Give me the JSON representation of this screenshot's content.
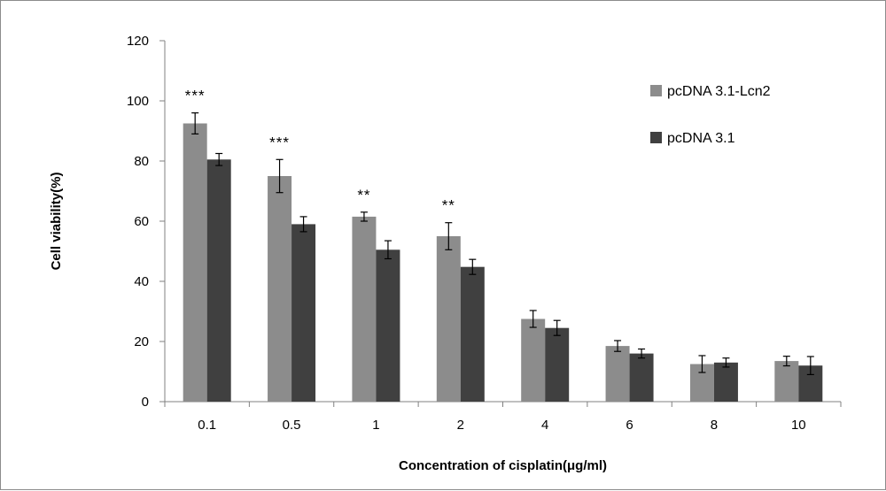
{
  "chart_data": {
    "type": "bar",
    "categories": [
      "0.1",
      "0.5",
      "1",
      "2",
      "4",
      "6",
      "8",
      "10"
    ],
    "xlabel": "Concentration of cisplatin(μg/ml)",
    "ylabel": "Cell viability(%)",
    "ylim": [
      0,
      120
    ],
    "yticks": [
      "0",
      "20",
      "40",
      "60",
      "80",
      "100",
      "120"
    ],
    "grid": false,
    "legend_position": "top-right",
    "series": [
      {
        "name": "pcDNA 3.1-Lcn2",
        "color": "#8c8c8c",
        "values": [
          92.5,
          75,
          61.5,
          55,
          27.5,
          18.5,
          12.5,
          13.5
        ],
        "errors": [
          3.5,
          5.5,
          1.5,
          4.5,
          2.8,
          1.8,
          2.8,
          1.6
        ]
      },
      {
        "name": "pcDNA 3.1",
        "color": "#404040",
        "values": [
          80.5,
          59,
          50.5,
          44.8,
          24.5,
          16,
          13,
          12
        ],
        "errors": [
          2,
          2.5,
          3,
          2.5,
          2.5,
          1.5,
          1.5,
          3
        ]
      }
    ],
    "annotations": [
      {
        "category": "0.1",
        "text": "***"
      },
      {
        "category": "0.5",
        "text": "***"
      },
      {
        "category": "1",
        "text": "**"
      },
      {
        "category": "2",
        "text": "**"
      }
    ]
  }
}
